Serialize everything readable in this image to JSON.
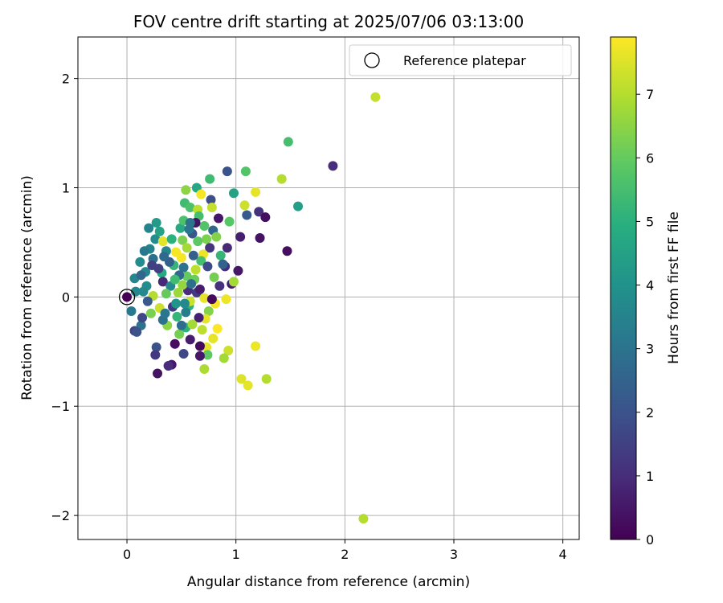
{
  "chart_data": {
    "type": "scatter",
    "title": "FOV centre drift starting at 2025/07/06 03:13:00",
    "xlabel": "Angular distance from reference (arcmin)",
    "ylabel": "Rotation from reference (arcmin)",
    "xlim": [
      -0.45,
      4.15
    ],
    "ylim": [
      -2.22,
      2.38
    ],
    "xticks": [
      0,
      1,
      2,
      3,
      4
    ],
    "yticks": [
      -2,
      -1,
      0,
      1,
      2
    ],
    "xtick_labels": [
      "0",
      "1",
      "2",
      "3",
      "4"
    ],
    "ytick_labels": [
      "−2",
      "−1",
      "0",
      "1",
      "2"
    ],
    "grid": true,
    "legend": {
      "position": "top-right",
      "entries": [
        "Reference platepar"
      ]
    },
    "reference_point": {
      "x": 0,
      "y": 0,
      "label": "Reference platepar"
    },
    "colorbar": {
      "label": "Hours from first FF file",
      "colormap": "viridis",
      "range": [
        0,
        7.9
      ],
      "ticks": [
        0,
        1,
        2,
        3,
        4,
        5,
        6,
        7
      ],
      "tick_labels": [
        "0",
        "1",
        "2",
        "3",
        "4",
        "5",
        "6",
        "7"
      ]
    },
    "series": [
      {
        "c_field": "hours",
        "points": [
          [
            2.28,
            1.83,
            7.2
          ],
          [
            1.89,
            1.2,
            1.0
          ],
          [
            1.48,
            1.42,
            5.5
          ],
          [
            1.42,
            1.08,
            7.0
          ],
          [
            1.57,
            0.83,
            4.4
          ],
          [
            1.47,
            0.42,
            0.3
          ],
          [
            2.17,
            -2.03,
            7.0
          ],
          [
            1.28,
            -0.75,
            7.0
          ],
          [
            1.11,
            -0.81,
            7.6
          ],
          [
            1.05,
            -0.75,
            7.5
          ],
          [
            1.18,
            -0.45,
            7.7
          ],
          [
            0.93,
            -0.49,
            7.3
          ],
          [
            0.92,
            1.15,
            2.0
          ],
          [
            1.09,
            1.15,
            5.7
          ],
          [
            0.76,
            1.08,
            5.4
          ],
          [
            0.98,
            0.95,
            4.5
          ],
          [
            1.18,
            0.96,
            7.6
          ],
          [
            1.21,
            0.78,
            1.1
          ],
          [
            1.27,
            0.73,
            0.3
          ],
          [
            1.22,
            0.54,
            0.4
          ],
          [
            1.04,
            0.55,
            0.7
          ],
          [
            1.02,
            0.24,
            0.5
          ],
          [
            1.08,
            0.84,
            7.3
          ],
          [
            1.1,
            0.75,
            2.2
          ],
          [
            0.94,
            0.69,
            5.8
          ],
          [
            0.84,
            0.72,
            0.5
          ],
          [
            0.92,
            0.45,
            0.9
          ],
          [
            0.9,
            0.28,
            1.0
          ],
          [
            0.96,
            0.12,
            0.6
          ],
          [
            0.98,
            0.14,
            6.8
          ],
          [
            0.91,
            -0.02,
            7.7
          ],
          [
            0.81,
            -0.06,
            7.8
          ],
          [
            0.83,
            -0.29,
            7.9
          ],
          [
            0.79,
            -0.38,
            7.6
          ],
          [
            0.73,
            -0.46,
            7.6
          ],
          [
            0.71,
            -0.66,
            6.9
          ],
          [
            0.74,
            -0.53,
            5.9
          ],
          [
            0.89,
            -0.56,
            6.8
          ],
          [
            0.67,
            -0.54,
            0.5
          ],
          [
            0.58,
            -0.39,
            0.6
          ],
          [
            0.67,
            -0.45,
            0.2
          ],
          [
            0.54,
            -0.28,
            5.0
          ],
          [
            0.41,
            -0.62,
            0.5
          ],
          [
            0.38,
            -0.63,
            1.0
          ],
          [
            0.44,
            -0.43,
            0.3
          ],
          [
            0.52,
            -0.52,
            1.7
          ],
          [
            0.27,
            -0.46,
            2.0
          ],
          [
            0.26,
            -0.53,
            1.3
          ],
          [
            0.28,
            -0.7,
            0.4
          ],
          [
            0.13,
            -0.26,
            3.0
          ],
          [
            0.07,
            -0.31,
            1.6
          ],
          [
            0.09,
            -0.32,
            2.0
          ],
          [
            0.14,
            -0.19,
            1.7
          ],
          [
            0.04,
            -0.13,
            3.2
          ],
          [
            0.08,
            0.05,
            3.6
          ],
          [
            0.07,
            0.17,
            3.6
          ],
          [
            0.12,
            0.32,
            3.8
          ],
          [
            0.17,
            0.23,
            3.6
          ],
          [
            0.18,
            0.1,
            3.8
          ],
          [
            0.21,
            0.44,
            3.5
          ],
          [
            0.2,
            0.63,
            3.5
          ],
          [
            0.27,
            0.68,
            4.3
          ],
          [
            0.26,
            0.53,
            3.8
          ],
          [
            0.24,
            0.35,
            2.9
          ],
          [
            0.3,
            0.6,
            4.5
          ],
          [
            0.33,
            0.51,
            7.6
          ],
          [
            0.36,
            0.42,
            3.6
          ],
          [
            0.32,
            0.22,
            4.8
          ],
          [
            0.33,
            0.14,
            0.9
          ],
          [
            0.29,
            0.26,
            1.5
          ],
          [
            0.24,
            0.01,
            7.0
          ],
          [
            0.3,
            -0.1,
            7.3
          ],
          [
            0.37,
            -0.26,
            6.5
          ],
          [
            0.33,
            -0.21,
            2.9
          ],
          [
            0.42,
            -0.09,
            1.3
          ],
          [
            0.4,
            0.1,
            3.7
          ],
          [
            0.43,
            0.29,
            5.2
          ],
          [
            0.45,
            0.41,
            7.8
          ],
          [
            0.49,
            0.63,
            4.8
          ],
          [
            0.51,
            0.52,
            6.3
          ],
          [
            0.52,
            0.7,
            5.6
          ],
          [
            0.53,
            0.86,
            5.4
          ],
          [
            0.54,
            0.98,
            6.5
          ],
          [
            0.58,
            0.82,
            5.6
          ],
          [
            0.64,
            1.0,
            4.7
          ],
          [
            0.65,
            0.8,
            7.1
          ],
          [
            0.68,
            0.94,
            7.8
          ],
          [
            0.66,
            0.74,
            5.5
          ],
          [
            0.71,
            0.65,
            5.7
          ],
          [
            0.73,
            0.53,
            6.3
          ],
          [
            0.77,
            0.89,
            1.9
          ],
          [
            0.78,
            0.82,
            7.2
          ],
          [
            0.79,
            0.61,
            2.6
          ],
          [
            0.76,
            0.45,
            1.2
          ],
          [
            0.7,
            0.39,
            7.7
          ],
          [
            0.68,
            0.33,
            5.5
          ],
          [
            0.63,
            0.25,
            7.1
          ],
          [
            0.62,
            0.16,
            6.1
          ],
          [
            0.64,
            0.04,
            1.3
          ],
          [
            0.67,
            0.07,
            0.6
          ],
          [
            0.71,
            -0.01,
            7.6
          ],
          [
            0.75,
            -0.13,
            6.4
          ],
          [
            0.72,
            -0.2,
            7.6
          ],
          [
            0.69,
            -0.3,
            7.1
          ],
          [
            0.66,
            -0.19,
            0.7
          ],
          [
            0.6,
            -0.25,
            6.8
          ],
          [
            0.57,
            -0.08,
            5.0
          ],
          [
            0.56,
            0.06,
            1.0
          ],
          [
            0.55,
            0.19,
            6.0
          ],
          [
            0.52,
            0.27,
            3.0
          ],
          [
            0.5,
            0.36,
            7.8
          ],
          [
            0.48,
            0.2,
            2.7
          ],
          [
            0.47,
            0.04,
            6.7
          ],
          [
            0.45,
            -0.06,
            4.1
          ],
          [
            0.46,
            -0.18,
            5.2
          ],
          [
            0.48,
            -0.34,
            6.2
          ],
          [
            0.5,
            -0.26,
            2.8
          ],
          [
            0.54,
            -0.14,
            3.3
          ],
          [
            0.58,
            -0.04,
            7.3
          ],
          [
            0.61,
            0.38,
            2.4
          ],
          [
            0.6,
            0.58,
            2.1
          ],
          [
            0.57,
            0.62,
            3.1
          ],
          [
            0.55,
            0.45,
            6.8
          ],
          [
            0.41,
            0.53,
            5.0
          ],
          [
            0.39,
            0.32,
            2.4
          ],
          [
            0.36,
            0.03,
            6.0
          ],
          [
            0.35,
            -0.15,
            3.1
          ],
          [
            0.22,
            -0.15,
            6.3
          ],
          [
            0.19,
            -0.04,
            2.2
          ],
          [
            0.15,
            0.05,
            3.7
          ],
          [
            0.13,
            0.2,
            2.6
          ],
          [
            0.16,
            0.42,
            3.2
          ],
          [
            0.23,
            0.29,
            1.5
          ],
          [
            0.34,
            0.37,
            2.7
          ],
          [
            0.44,
            0.16,
            5.4
          ],
          [
            0.51,
            0.11,
            6.6
          ],
          [
            0.53,
            -0.06,
            3.7
          ],
          [
            0.59,
            0.12,
            2.9
          ],
          [
            0.65,
            0.51,
            5.9
          ],
          [
            0.74,
            0.28,
            1.8
          ],
          [
            0.8,
            0.18,
            6.2
          ],
          [
            0.78,
            -0.02,
            0.2
          ],
          [
            0.85,
            0.1,
            1.1
          ],
          [
            0.86,
            0.38,
            5.2
          ],
          [
            0.82,
            0.55,
            6.4
          ],
          [
            0.88,
            0.3,
            2.5
          ],
          [
            0.63,
            0.68,
            0.4
          ],
          [
            0.58,
            0.68,
            3.0
          ]
        ]
      }
    ]
  }
}
